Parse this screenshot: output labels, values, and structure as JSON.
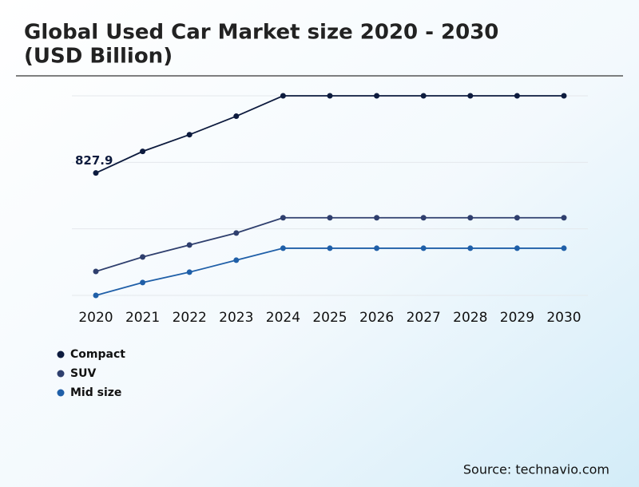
{
  "chart_data": {
    "type": "line",
    "title": "Global Used Car Market size 2020 - 2030",
    "subtitle": "(USD Billion)",
    "categories": [
      "2020",
      "2021",
      "2022",
      "2023",
      "2024",
      "2025",
      "2026",
      "2027",
      "2028",
      "2029",
      "2030"
    ],
    "series": [
      {
        "name": "Compact",
        "color": "#0d1b3e",
        "values": [
          827.9,
          974,
          1087,
          1212,
          1350,
          1350,
          1350,
          1350,
          1350,
          1350,
          1350
        ]
      },
      {
        "name": "SUV",
        "color": "#2f3f6e",
        "values": [
          162,
          260,
          341,
          422,
          525,
          525,
          525,
          525,
          525,
          525,
          525
        ]
      },
      {
        "name": "Mid size",
        "color": "#1f5fa8",
        "values": [
          0,
          87,
          157,
          238,
          319,
          319,
          319,
          319,
          319,
          319,
          319
        ]
      }
    ],
    "labeled_point": {
      "series": 0,
      "index": 0
    },
    "ylim": [
      0,
      1350
    ],
    "yticks": [
      0,
      450,
      900,
      1350
    ],
    "grid": true,
    "source": "Source: technavio.com"
  }
}
